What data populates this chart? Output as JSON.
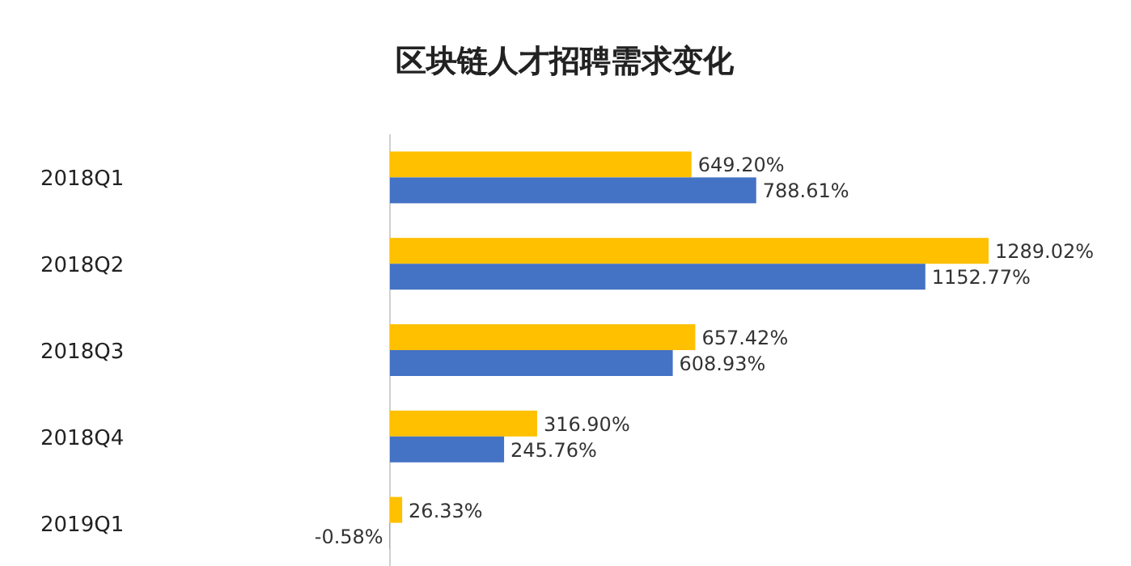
{
  "chart_data": {
    "type": "bar",
    "orientation": "horizontal",
    "title": "区块链人才招聘需求变化",
    "categories": [
      "2018Q1",
      "2018Q2",
      "2018Q3",
      "2018Q4",
      "2019Q1"
    ],
    "series": [
      {
        "color": "#ffc000",
        "values": [
          649.2,
          1289.02,
          657.42,
          316.9,
          26.33
        ],
        "value_labels": [
          "649.20%",
          "1289.02%",
          "657.42%",
          "316.90%",
          "26.33%"
        ]
      },
      {
        "color": "#4472c4",
        "values": [
          788.61,
          1152.77,
          608.93,
          245.76,
          -0.58
        ],
        "value_labels": [
          "788.61%",
          "1152.77%",
          "608.93%",
          "245.76%",
          "-0.58%"
        ]
      }
    ],
    "relative": false
  }
}
